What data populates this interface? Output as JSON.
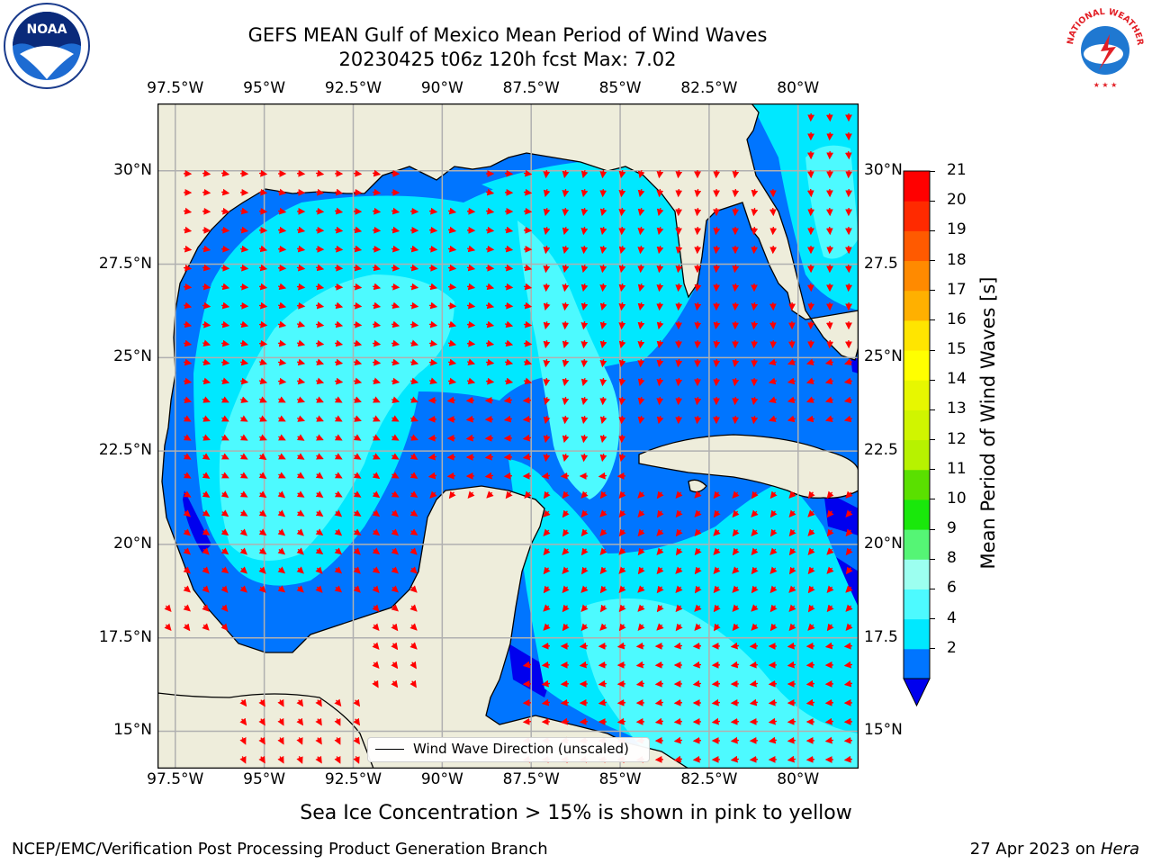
{
  "title": {
    "line1": "GEFS MEAN Gulf of Mexico Mean Period of Wind Waves",
    "line2": "20230425 t06z 120h fcst   Max: 7.02"
  },
  "map": {
    "lon_ticks": [
      "97.5°W",
      "95°W",
      "92.5°W",
      "90°W",
      "87.5°W",
      "85°W",
      "82.5°W",
      "80°W"
    ],
    "lat_ticks_left": [
      "30°N",
      "27.5°N",
      "25°N",
      "22.5°N",
      "20°N",
      "17.5°N",
      "15°N"
    ],
    "lat_ticks_right": [
      "30°N",
      "27.5",
      "25°N",
      "22.5",
      "20°N",
      "17.5",
      "15°N"
    ],
    "lon_range": [
      -98,
      -78.3
    ],
    "lat_range": [
      14,
      31.8
    ],
    "land_color": "#eeeddb",
    "legend_label": "Wind Wave Direction (unscaled)",
    "arrow_color": "#ff0000"
  },
  "colorbar": {
    "label": "Mean Period of Wind Waves [s]",
    "ticks": [
      "21",
      "20",
      "19",
      "18",
      "17",
      "16",
      "15",
      "14",
      "13",
      "12",
      "11",
      "10",
      "9",
      "8",
      "6",
      "4",
      "2"
    ],
    "colors_bottom_to_top": [
      "#0075ff",
      "#00e8ff",
      "#4dfaff",
      "#9cfff0",
      "#55f575",
      "#19e80b",
      "#5ae000",
      "#b7f200",
      "#d0f500",
      "#e7f700",
      "#ffff00",
      "#ffe500",
      "#ffb000",
      "#ff8a00",
      "#ff5a00",
      "#ff2a00",
      "#ff0000"
    ],
    "under_color": "#0000ee"
  },
  "subtitle": "Sea Ice Concentration > 15% is shown in pink to yellow",
  "footer": {
    "left": "NCEP/EMC/Verification Post Processing Product Generation Branch",
    "right_date": "27 Apr 2023 on",
    "right_machine": "Hera"
  },
  "logos": {
    "noaa_text": "NOAA",
    "nws_text": "NATIONAL WEATHER SERVICE"
  }
}
